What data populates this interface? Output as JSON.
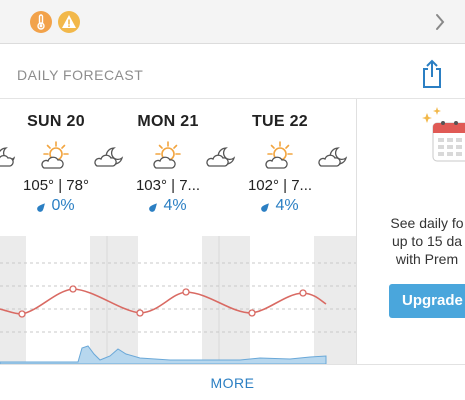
{
  "alerts": {
    "badges": [
      {
        "icon": "thermometer-icon",
        "color": "#f2a24a"
      },
      {
        "icon": "warning-icon",
        "color": "#f2b84a"
      }
    ]
  },
  "card": {
    "title": "DAILY FORECAST",
    "share_icon": "share-icon"
  },
  "days": [
    {
      "label": "SUN 20",
      "temps": "105° | 78°",
      "precip": "0%",
      "icon": "mostly-sunny-icon"
    },
    {
      "label": "MON 21",
      "temps": "103° | 7...",
      "precip": "4%",
      "icon": "mostly-sunny-icon"
    },
    {
      "label": "TUE 22",
      "temps": "102° | 7...",
      "precip": "4%",
      "icon": "mostly-sunny-icon"
    }
  ],
  "promo": {
    "text": "See daily fo\nup to 15 da\nwith Prem",
    "button_label": "Upgrade"
  },
  "footer": {
    "more_label": "MORE"
  },
  "colors": {
    "accent": "#2b7fc3",
    "temp_line": "#d96a63",
    "upgrade": "#4aa6dc"
  }
}
